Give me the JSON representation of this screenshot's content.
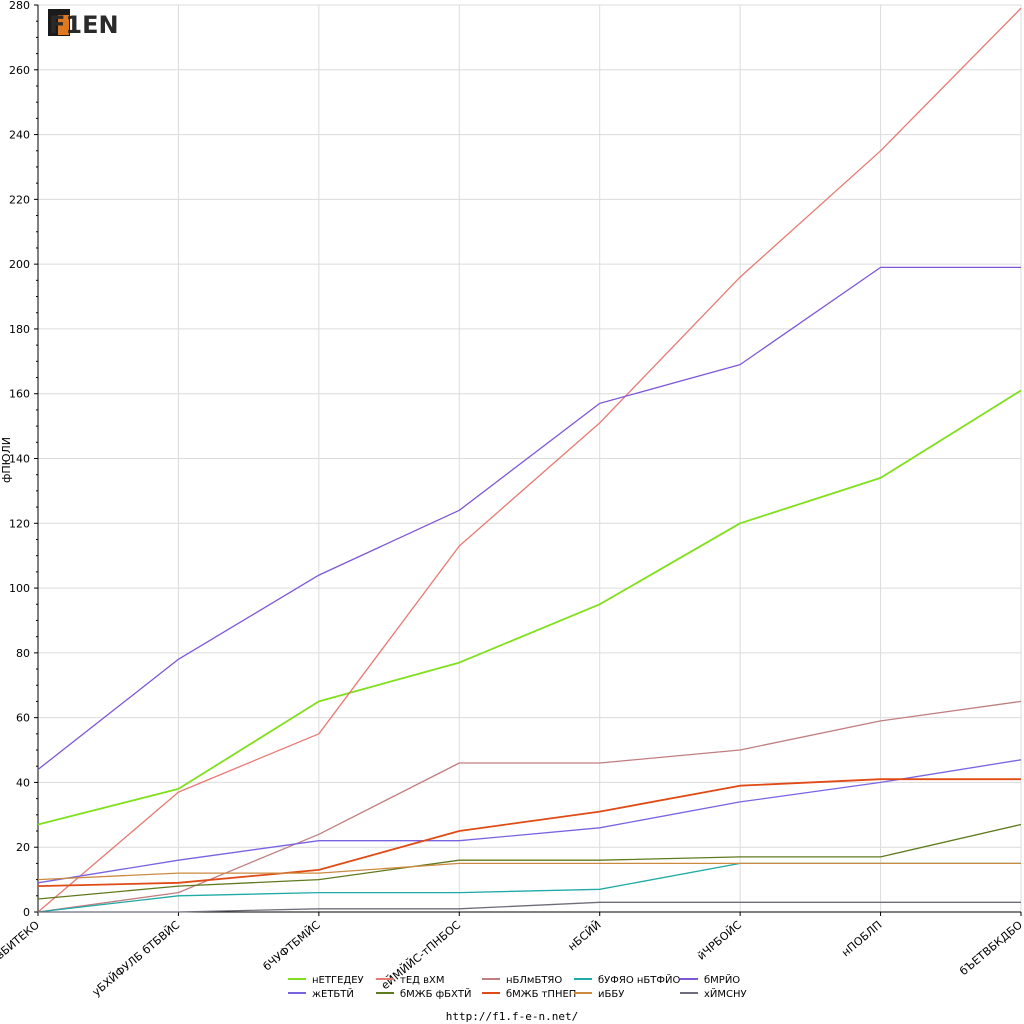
{
  "logo": {
    "text": "F1EN"
  },
  "footer": {
    "url": "http://f1.f-e-n.net/"
  },
  "chart_data": {
    "type": "line",
    "title": "",
    "xlabel": "",
    "ylabel": "фПЮЛИ",
    "ylim": [
      0,
      280
    ],
    "grid": true,
    "legend_position": "bottom",
    "categories": [
      "вБИТЕКО",
      "уБХЙФУЛБ бТБВЙС",
      "бЧУФТБМЙС",
      "еЙМЙЙС-тПНБОС",
      "нБСЙЙ",
      "йЧРБОЙС",
      "нПОБЛП",
      "бЪЕТВБКДБО"
    ],
    "yticks": [
      0,
      20,
      40,
      60,
      80,
      100,
      120,
      140,
      160,
      180,
      200,
      220,
      240,
      260,
      280
    ],
    "series": [
      {
        "name": "нЕТГЕДЕУ",
        "color": "#7fe01c",
        "values": [
          27,
          38,
          65,
          77,
          95,
          120,
          134,
          161
        ]
      },
      {
        "name": "тЕД вХМ",
        "color": "#e87a72",
        "values": [
          0,
          37,
          55,
          113,
          151,
          196,
          235,
          279
        ]
      },
      {
        "name": "нБЛмБТЯО",
        "color": "#c07e80",
        "values": [
          0,
          6,
          24,
          46,
          46,
          50,
          59,
          65
        ]
      },
      {
        "name": "бУФЯО нБТФЙО",
        "color": "#1eaaa6",
        "values": [
          0,
          5,
          6,
          6,
          7,
          15,
          15,
          15
        ]
      },
      {
        "name": "бМРЙО",
        "color": "#7d57d6",
        "values": [
          44,
          78,
          104,
          124,
          157,
          169,
          199,
          199
        ]
      },
      {
        "name": "жЕТБТЙ",
        "color": "#7a63e2",
        "values": [
          9,
          16,
          22,
          22,
          26,
          34,
          40,
          47
        ]
      },
      {
        "name": "бМЖБ фБХТЙ",
        "color": "#5f7a1e",
        "values": [
          4,
          8,
          10,
          16,
          16,
          17,
          17,
          27
        ]
      },
      {
        "name": "бМЖБ тПНЕП",
        "color": "#e04a14",
        "values": [
          8,
          9,
          13,
          25,
          31,
          39,
          41,
          41
        ]
      },
      {
        "name": "иББУ",
        "color": "#cc8a40",
        "values": [
          10,
          12,
          12,
          15,
          15,
          15,
          15,
          15
        ]
      },
      {
        "name": "хЙМСНУ",
        "color": "#6e6e7a",
        "values": [
          0,
          0,
          1,
          1,
          3,
          3,
          3,
          3
        ]
      }
    ]
  }
}
